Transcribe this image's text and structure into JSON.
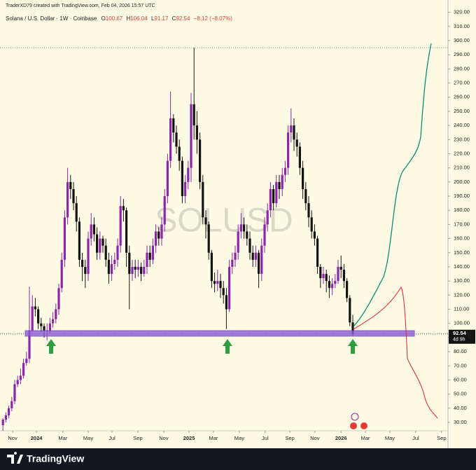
{
  "chart_data": {
    "type": "candlestick",
    "attribution": "TraderXD79 created with TradingView.com, Feb 04, 2026 15:57 UTC",
    "title": "Solana / U.S. Dollar · 1W · Coinbase",
    "ohlc_labels": [
      "O",
      "H",
      "L",
      "C"
    ],
    "change_label": "−8.12 (−8.07%)",
    "countdown": "4d 9h",
    "watermark": "SOLUSD",
    "up_color": "#8e24aa",
    "down_color": "#131313",
    "categories": [
      null,
      null,
      null,
      null,
      null,
      null,
      null,
      null,
      null,
      null,
      null,
      null,
      null,
      null,
      null,
      null,
      null,
      null,
      null,
      null,
      null,
      null,
      null,
      null,
      null,
      null,
      null,
      null,
      null,
      null,
      null,
      null,
      null,
      null,
      null,
      null,
      null,
      null,
      null,
      null,
      null,
      null,
      null,
      null,
      null,
      null,
      null,
      null,
      null,
      null,
      null,
      null,
      null,
      null,
      null,
      null,
      null,
      null,
      null,
      null,
      null,
      null,
      null,
      null,
      null,
      null,
      null,
      null,
      null,
      null,
      null,
      null,
      null,
      null,
      null,
      null,
      null,
      null,
      null,
      null,
      null,
      null,
      null,
      null,
      null,
      null,
      null,
      null,
      null,
      null,
      null,
      null,
      null,
      null,
      null,
      null,
      null,
      null,
      null,
      null,
      null,
      null,
      null,
      null,
      null,
      null,
      null,
      null,
      null,
      null,
      null,
      null,
      null,
      null,
      null,
      null,
      null,
      null,
      null,
      null
    ],
    "open": [
      28,
      32,
      35,
      40,
      45,
      57,
      60,
      63,
      72,
      75,
      95,
      112,
      110,
      100,
      98,
      95,
      95,
      100,
      103,
      110,
      125,
      145,
      175,
      200,
      195,
      185,
      172,
      145,
      140,
      135,
      160,
      170,
      163,
      150,
      160,
      155,
      145,
      135,
      142,
      145,
      155,
      183,
      180,
      150,
      135,
      140,
      138,
      140,
      135,
      140,
      150,
      145,
      155,
      165,
      160,
      170,
      190,
      215,
      245,
      235,
      225,
      215,
      190,
      200,
      210,
      255,
      240,
      230,
      200,
      175,
      170,
      150,
      130,
      128,
      130,
      125,
      120,
      110,
      140,
      145,
      150,
      165,
      170,
      165,
      160,
      150,
      145,
      150,
      135,
      155,
      170,
      180,
      195,
      185,
      200,
      195,
      205,
      210,
      235,
      240,
      230,
      225,
      210,
      195,
      185,
      175,
      165,
      160,
      140,
      132,
      135,
      130,
      125,
      128,
      130,
      140,
      138,
      130,
      118,
      100.67
    ],
    "high": [
      33,
      37,
      42,
      48,
      60,
      63,
      68,
      75,
      80,
      126,
      120,
      118,
      112,
      104,
      100,
      100,
      104,
      108,
      114,
      128,
      150,
      180,
      210,
      205,
      200,
      190,
      175,
      150,
      145,
      165,
      178,
      175,
      168,
      165,
      162,
      160,
      150,
      148,
      150,
      160,
      190,
      188,
      182,
      155,
      145,
      145,
      145,
      143,
      145,
      155,
      155,
      160,
      170,
      168,
      175,
      195,
      220,
      264,
      248,
      240,
      230,
      218,
      205,
      215,
      263,
      295,
      250,
      235,
      205,
      180,
      172,
      152,
      136,
      138,
      135,
      130,
      125,
      145,
      150,
      155,
      170,
      178,
      175,
      170,
      165,
      155,
      155,
      152,
      160,
      175,
      185,
      200,
      198,
      205,
      205,
      210,
      215,
      240,
      252,
      245,
      235,
      228,
      215,
      200,
      190,
      180,
      170,
      162,
      142,
      140,
      138,
      134,
      132,
      135,
      145,
      148,
      142,
      132,
      120,
      106.04
    ],
    "low": [
      24,
      30,
      33,
      38,
      43,
      55,
      57,
      61,
      70,
      72,
      94,
      105,
      96,
      94,
      90,
      88,
      93,
      97,
      100,
      106,
      122,
      140,
      170,
      188,
      180,
      165,
      140,
      130,
      125,
      130,
      155,
      158,
      145,
      145,
      150,
      140,
      128,
      130,
      138,
      140,
      150,
      172,
      140,
      110,
      130,
      132,
      133,
      130,
      133,
      135,
      140,
      142,
      150,
      155,
      155,
      165,
      185,
      210,
      228,
      220,
      208,
      185,
      185,
      195,
      200,
      230,
      220,
      195,
      170,
      160,
      145,
      125,
      122,
      123,
      118,
      114,
      96,
      108,
      135,
      140,
      145,
      160,
      160,
      155,
      145,
      140,
      140,
      125,
      130,
      150,
      165,
      175,
      180,
      182,
      188,
      190,
      200,
      205,
      228,
      222,
      218,
      205,
      188,
      180,
      168,
      160,
      155,
      135,
      125,
      128,
      122,
      118,
      120,
      125,
      128,
      132,
      125,
      115,
      98,
      91.17
    ],
    "close": [
      32,
      35,
      40,
      45,
      57,
      60,
      63,
      72,
      75,
      95,
      112,
      110,
      100,
      98,
      95,
      95,
      100,
      103,
      110,
      125,
      145,
      175,
      200,
      195,
      185,
      172,
      145,
      140,
      135,
      160,
      170,
      163,
      150,
      160,
      155,
      145,
      135,
      142,
      145,
      155,
      183,
      180,
      150,
      135,
      140,
      138,
      140,
      135,
      140,
      150,
      145,
      155,
      165,
      160,
      170,
      190,
      215,
      245,
      235,
      225,
      215,
      190,
      200,
      210,
      255,
      240,
      230,
      200,
      175,
      170,
      150,
      130,
      128,
      130,
      125,
      120,
      110,
      140,
      145,
      150,
      165,
      170,
      165,
      160,
      150,
      145,
      150,
      135,
      155,
      170,
      180,
      195,
      185,
      200,
      195,
      205,
      210,
      235,
      240,
      230,
      225,
      210,
      195,
      185,
      175,
      165,
      160,
      140,
      132,
      135,
      130,
      125,
      128,
      130,
      140,
      138,
      130,
      118,
      100.67,
      92.54
    ],
    "xlim": [
      -1,
      151.38
    ],
    "xticks": [
      {
        "value": 3.3,
        "label": "Nov"
      },
      {
        "value": 11.4,
        "label": "2024"
      },
      {
        "value": 20.4,
        "label": "Mar"
      },
      {
        "value": 29,
        "label": "May"
      },
      {
        "value": 37.1,
        "label": "Jul"
      },
      {
        "value": 45.9,
        "label": "Sep"
      },
      {
        "value": 54.7,
        "label": "Nov"
      },
      {
        "value": 63.3,
        "label": "2025"
      },
      {
        "value": 71.6,
        "label": "Mar"
      },
      {
        "value": 80.4,
        "label": "May"
      },
      {
        "value": 89.2,
        "label": "Jul"
      },
      {
        "value": 97.6,
        "label": "Sep"
      },
      {
        "value": 106.1,
        "label": "Nov"
      },
      {
        "value": 115,
        "label": "2026"
      },
      {
        "value": 123.3,
        "label": "Mar"
      },
      {
        "value": 131.6,
        "label": "May"
      },
      {
        "value": 140.4,
        "label": "Jul"
      },
      {
        "value": 149.2,
        "label": "Sep"
      }
    ],
    "ylim": [
      24.06,
      328.73
    ],
    "yticks": [
      {
        "value": 30,
        "label": "30.00"
      },
      {
        "value": 40,
        "label": "40.00"
      },
      {
        "value": 50,
        "label": "50.00"
      },
      {
        "value": 60,
        "label": "60.00"
      },
      {
        "value": 70,
        "label": "70.00"
      },
      {
        "value": 80,
        "label": "80.00"
      },
      {
        "value": 90,
        "label": "90.00"
      },
      {
        "value": 100,
        "label": "100.00"
      },
      {
        "value": 110,
        "label": "110.00"
      },
      {
        "value": 120,
        "label": "120.00"
      },
      {
        "value": 130,
        "label": "130.00"
      },
      {
        "value": 140,
        "label": "140.00"
      },
      {
        "value": 150,
        "label": "150.00"
      },
      {
        "value": 160,
        "label": "160.00"
      },
      {
        "value": 170,
        "label": "170.00"
      },
      {
        "value": 180,
        "label": "180.00"
      },
      {
        "value": 190,
        "label": "190.00"
      },
      {
        "value": 200,
        "label": "200.00"
      },
      {
        "value": 210,
        "label": "210.00"
      },
      {
        "value": 220,
        "label": "220.00"
      },
      {
        "value": 230,
        "label": "230.00"
      },
      {
        "value": 240,
        "label": "240.00"
      },
      {
        "value": 250,
        "label": "250.00"
      },
      {
        "value": 260,
        "label": "260.00"
      },
      {
        "value": 270,
        "label": "270.00"
      },
      {
        "value": 280,
        "label": "280.00"
      },
      {
        "value": 290,
        "label": "290.00"
      },
      {
        "value": 300,
        "label": "300.00"
      },
      {
        "value": 310,
        "label": "310.00"
      },
      {
        "value": 320,
        "label": "320.00"
      }
    ],
    "grid": false
  },
  "footer": {
    "brand": "TradingView"
  }
}
